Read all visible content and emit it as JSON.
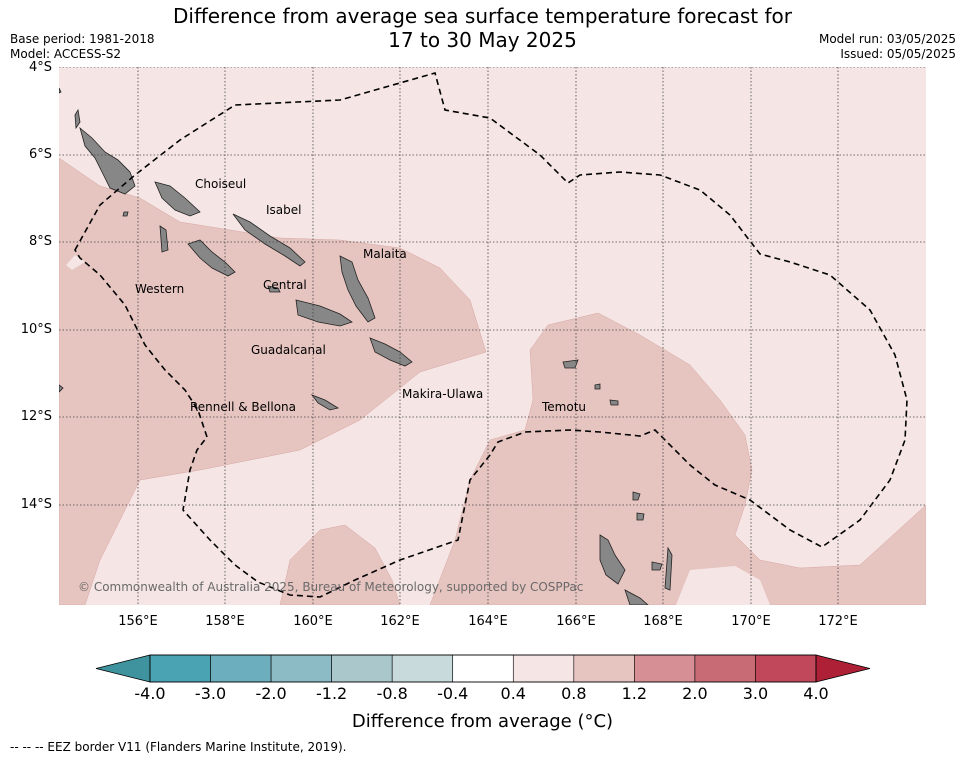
{
  "title": {
    "line1": "Difference from average sea surface temperature forecast for",
    "line2": "17 to 30 May 2025"
  },
  "meta": {
    "base_period": "Base period: 1981-2018",
    "model": "Model: ACCESS-S2",
    "model_run": "Model run: 03/05/2025",
    "issued": "Issued: 05/05/2025"
  },
  "lat_labels": [
    "4°S",
    "6°S",
    "8°S",
    "10°S",
    "12°S",
    "14°S"
  ],
  "lon_labels": [
    "156°E",
    "158°E",
    "160°E",
    "162°E",
    "164°E",
    "166°E",
    "168°E",
    "170°E",
    "172°E"
  ],
  "regions": [
    "Choiseul",
    "Isabel",
    "Malaita",
    "Western",
    "Central",
    "Guadalcanal",
    "Makira-Ulawa",
    "Rennell & Bellona",
    "Temotu"
  ],
  "copyright": "© Commonwealth of Australia 2025, Bureau of Meteorology, supported by COSPPac",
  "colorbar": {
    "ticks": [
      "-4.0",
      "-3.0",
      "-2.0",
      "-1.2",
      "-0.8",
      "-0.4",
      "0.4",
      "0.8",
      "1.2",
      "2.0",
      "3.0",
      "4.0"
    ],
    "colors": [
      "#3f939e",
      "#4aa3b3",
      "#6caebe",
      "#8cbbc5",
      "#aac8cc",
      "#c9dadd",
      "#ffffff",
      "#f5e6e5",
      "#e6c4c0",
      "#d68f95",
      "#c86b75",
      "#c0485a",
      "#ae2035"
    ],
    "label": "Difference from average (°C)"
  },
  "footnote": "--  --  -- EEZ border V11 (Flanders Marine Institute, 2019)."
}
